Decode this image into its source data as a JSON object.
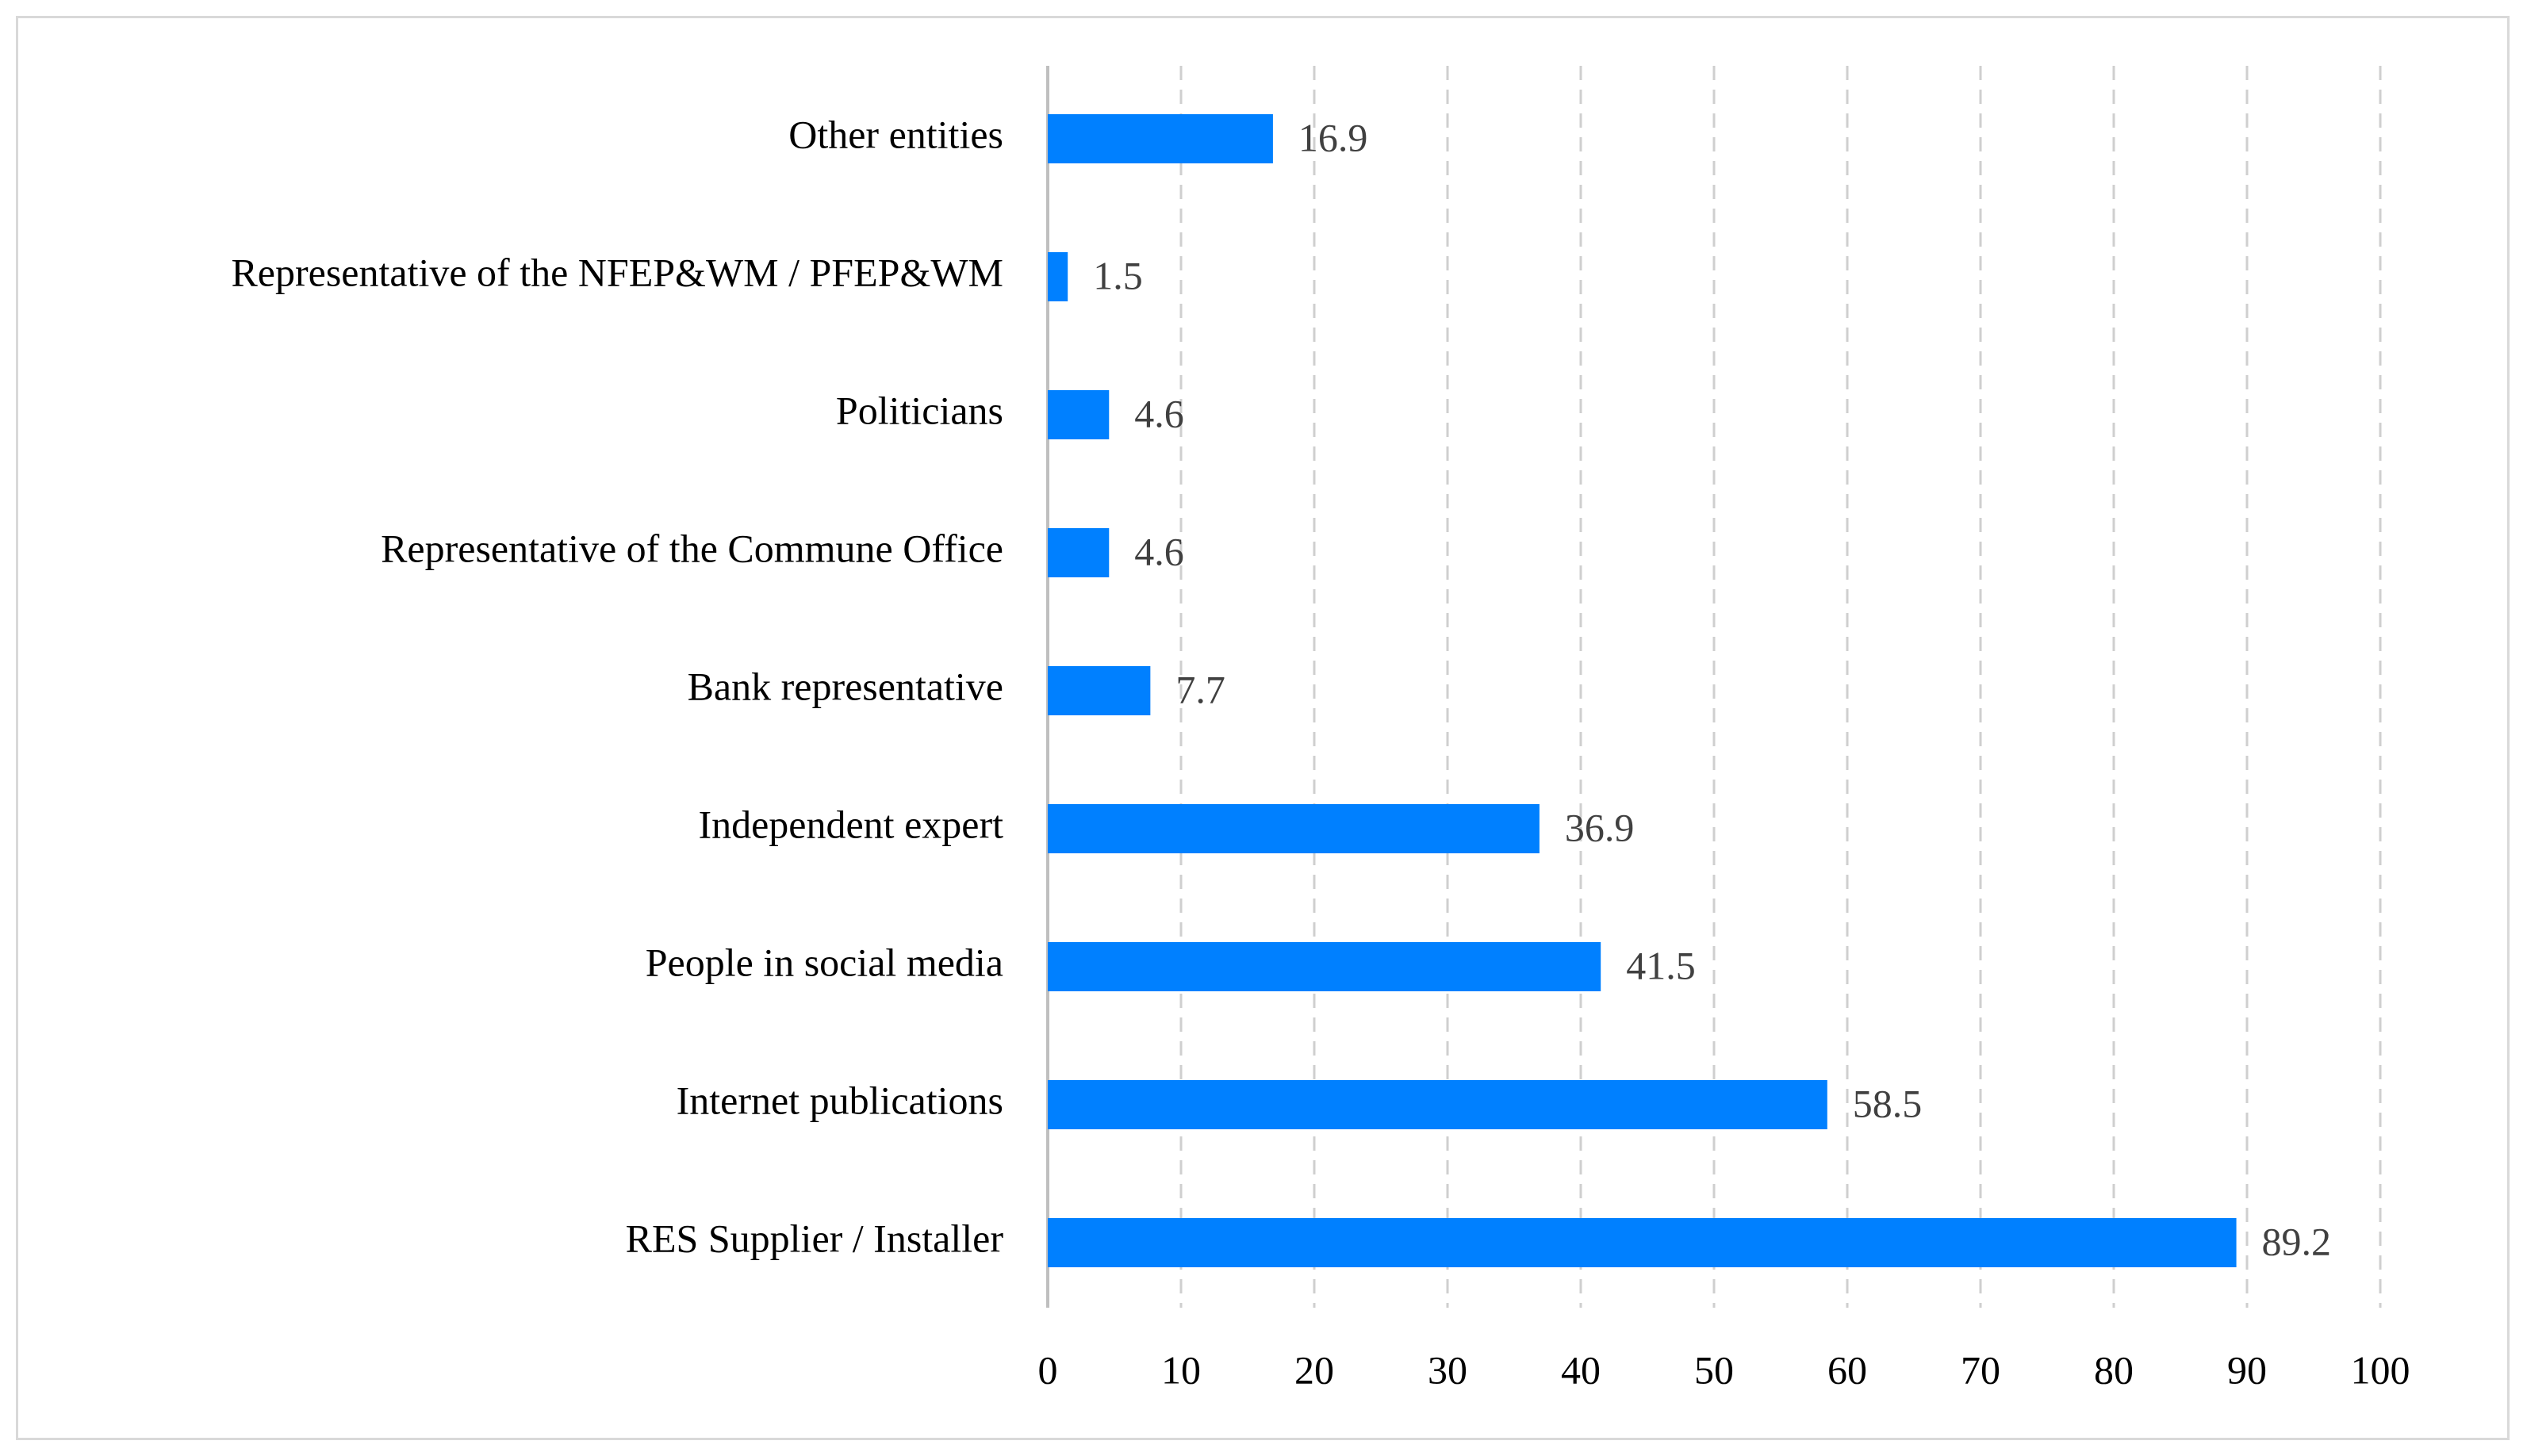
{
  "chart_data": {
    "type": "bar",
    "orientation": "horizontal",
    "title": "",
    "xlabel": "",
    "ylabel": "",
    "categories": [
      "Other entities",
      "Representative of the NFEP&WM / PFEP&WM",
      "Politicians",
      "Representative of the Commune Office",
      "Bank representative",
      "Independent expert",
      "People in social media",
      "Internet publications",
      "RES Supplier / Installer"
    ],
    "values": [
      16.9,
      1.5,
      4.6,
      4.6,
      7.7,
      36.9,
      41.5,
      58.5,
      89.2
    ],
    "value_labels": [
      "16.9",
      "1.5",
      "4.6",
      "4.6",
      "7.7",
      "36.9",
      "41.5",
      "58.5",
      "89.2"
    ],
    "xlim": [
      0,
      100
    ],
    "xticks": [
      0,
      10,
      20,
      30,
      40,
      50,
      60,
      70,
      80,
      90,
      100
    ],
    "xtick_labels": [
      "0",
      "10",
      "20",
      "30",
      "40",
      "50",
      "60",
      "70",
      "80",
      "90",
      "100"
    ],
    "grid": true,
    "legend": "none",
    "bar_color": "#0080ff"
  }
}
